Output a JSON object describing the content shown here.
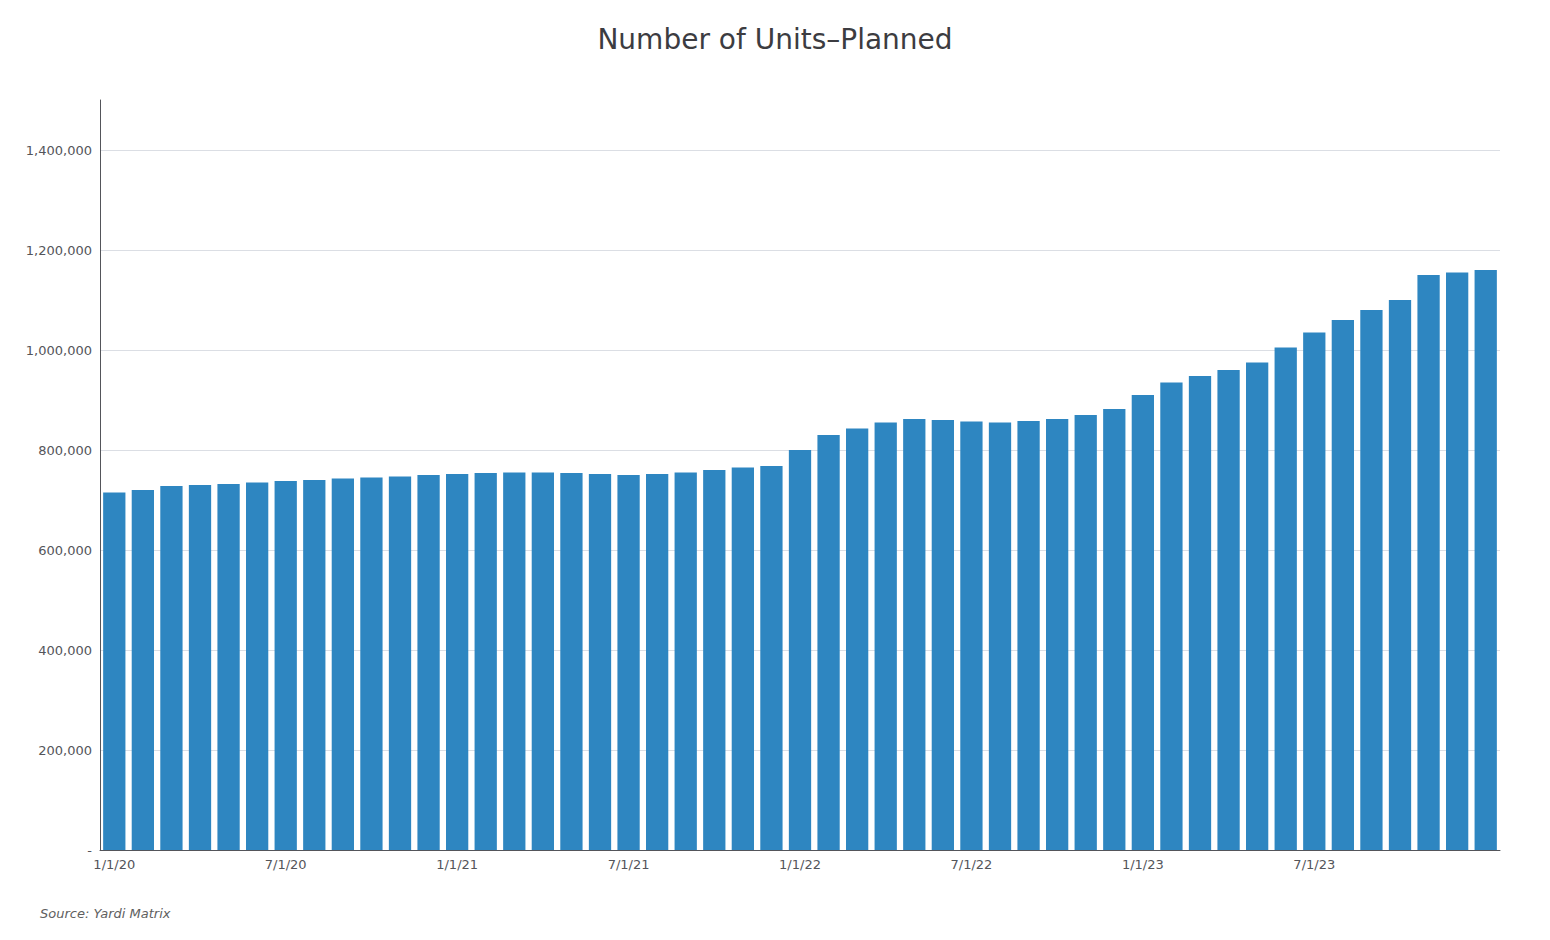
{
  "chart_data": {
    "type": "bar",
    "title": "Number of Units–Planned",
    "categories": [
      "1/1/20",
      null,
      null,
      null,
      null,
      null,
      "7/1/20",
      null,
      null,
      null,
      null,
      null,
      "1/1/21",
      null,
      null,
      null,
      null,
      null,
      "7/1/21",
      null,
      null,
      null,
      null,
      null,
      "1/1/22",
      null,
      null,
      null,
      null,
      null,
      "7/1/22",
      null,
      null,
      null,
      null,
      null,
      "1/1/23",
      null,
      null,
      null,
      null,
      null,
      "7/1/23",
      null,
      null,
      null,
      null,
      null,
      null
    ],
    "values": [
      715000,
      720000,
      728000,
      730000,
      732000,
      735000,
      738000,
      740000,
      743000,
      745000,
      747000,
      750000,
      752000,
      754000,
      755000,
      755000,
      754000,
      752000,
      750000,
      752000,
      755000,
      760000,
      765000,
      768000,
      800000,
      830000,
      843000,
      855000,
      862000,
      860000,
      857000,
      855000,
      858000,
      862000,
      870000,
      882000,
      910000,
      935000,
      948000,
      960000,
      975000,
      1005000,
      1035000,
      1060000,
      1080000,
      1100000,
      1150000,
      1155000,
      1160000
    ],
    "color": "#2E86C1",
    "ylim": [
      0,
      1500000
    ],
    "yticks": [
      {
        "value": 0,
        "label": "-"
      },
      {
        "value": 200000,
        "label": "200,000"
      },
      {
        "value": 400000,
        "label": "400,000"
      },
      {
        "value": 600000,
        "label": "600,000"
      },
      {
        "value": 800000,
        "label": "800,000"
      },
      {
        "value": 1000000,
        "label": "1,000,000"
      },
      {
        "value": 1200000,
        "label": "1,200,000"
      },
      {
        "value": 1400000,
        "label": "1,400,000"
      }
    ],
    "grid": true,
    "annotations": [
      "Source: Yardi Matrix"
    ]
  }
}
